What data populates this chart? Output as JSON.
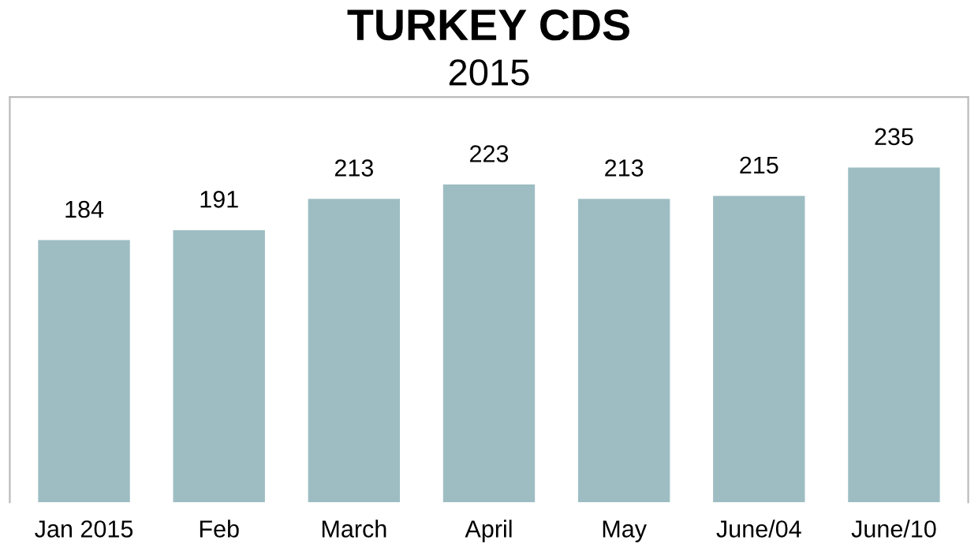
{
  "chart_data": {
    "type": "bar",
    "title": "TURKEY CDS",
    "subtitle": "2015",
    "categories": [
      "Jan 2015",
      "Feb",
      "March",
      "April",
      "May",
      "June/04",
      "June/10"
    ],
    "values": [
      184,
      191,
      213,
      223,
      213,
      215,
      235
    ],
    "color": "#9dbdc3",
    "data_labels": true,
    "grid": false,
    "legend": false
  }
}
